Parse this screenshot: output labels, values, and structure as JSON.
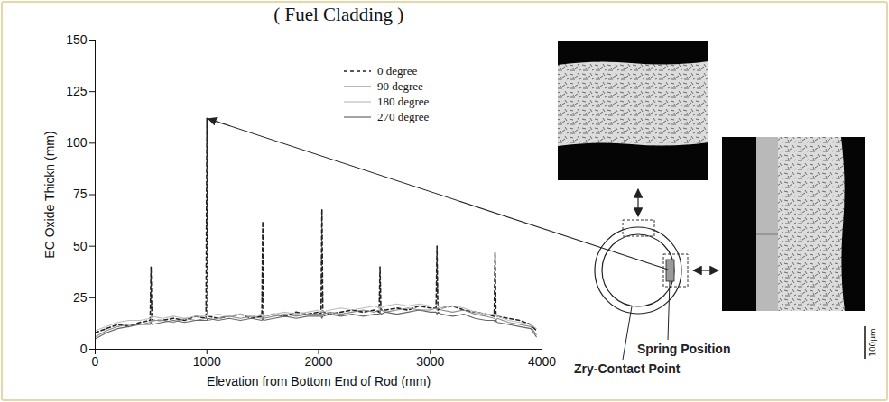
{
  "chart_data": {
    "type": "line",
    "title": "( Fuel Cladding )",
    "x_label": "Elevation from Bottom End of Rod (mm)",
    "y_label": "EC Oxide Thickn (mm)",
    "x": [
      0,
      100,
      200,
      300,
      400,
      492,
      500,
      508,
      600,
      700,
      800,
      900,
      992,
      1000,
      1008,
      1100,
      1200,
      1300,
      1400,
      1492,
      1500,
      1508,
      1600,
      1700,
      1800,
      1900,
      2000,
      2022,
      2030,
      2038,
      2100,
      2200,
      2300,
      2400,
      2500,
      2542,
      2550,
      2558,
      2600,
      2700,
      2800,
      2900,
      3000,
      3052,
      3060,
      3068,
      3100,
      3200,
      3300,
      3400,
      3500,
      3572,
      3580,
      3588,
      3600,
      3700,
      3800,
      3900,
      3950
    ],
    "series": [
      {
        "name": "0 degree",
        "color": "#222222",
        "line_style": "dashed",
        "values": [
          8,
          10,
          12,
          11,
          13,
          14,
          40,
          14,
          14,
          15,
          14,
          16,
          15,
          112,
          16,
          15,
          16,
          17,
          15,
          16,
          62,
          16,
          17,
          16,
          18,
          17,
          18,
          17,
          68,
          18,
          17,
          18,
          19,
          18,
          19,
          18,
          40,
          19,
          19,
          20,
          19,
          21,
          20,
          20,
          50,
          19,
          20,
          21,
          19,
          18,
          17,
          16,
          47,
          16,
          16,
          15,
          14,
          12,
          9
        ]
      },
      {
        "name": "90 degree",
        "color": "#8a8a8a",
        "line_style": "solid",
        "values": [
          6,
          9,
          11,
          12,
          12,
          13,
          13,
          14,
          14,
          13,
          15,
          14,
          15,
          15,
          14,
          15,
          16,
          15,
          16,
          15,
          16,
          15,
          16,
          17,
          16,
          17,
          17,
          17,
          16,
          17,
          18,
          17,
          18,
          19,
          18,
          19,
          18,
          19,
          18,
          19,
          20,
          19,
          19,
          20,
          19,
          20,
          19,
          18,
          19,
          17,
          16,
          15,
          15,
          14,
          15,
          13,
          12,
          11,
          7
        ]
      },
      {
        "name": "180 degree",
        "color": "#bdbdbd",
        "line_style": "solid",
        "values": [
          9,
          11,
          13,
          14,
          14,
          15,
          15,
          16,
          15,
          16,
          15,
          16,
          16,
          17,
          16,
          17,
          16,
          17,
          16,
          17,
          17,
          16,
          17,
          18,
          17,
          18,
          19,
          18,
          19,
          18,
          19,
          20,
          19,
          20,
          21,
          20,
          21,
          20,
          21,
          22,
          21,
          22,
          21,
          21,
          22,
          21,
          20,
          21,
          20,
          18,
          17,
          17,
          16,
          17,
          16,
          14,
          13,
          12,
          10
        ]
      },
      {
        "name": "270 degree",
        "color": "#666666",
        "line_style": "solid",
        "values": [
          5,
          8,
          10,
          11,
          12,
          12,
          13,
          12,
          13,
          14,
          13,
          14,
          14,
          14,
          15,
          14,
          15,
          14,
          15,
          14,
          15,
          14,
          15,
          16,
          15,
          16,
          16,
          16,
          15,
          16,
          17,
          16,
          17,
          16,
          17,
          17,
          18,
          17,
          18,
          17,
          18,
          19,
          18,
          18,
          17,
          18,
          17,
          16,
          17,
          15,
          14,
          14,
          13,
          14,
          13,
          12,
          11,
          10,
          6
        ]
      }
    ],
    "xlim": [
      0,
      4000
    ],
    "xticks": [
      0,
      1000,
      2000,
      3000,
      4000
    ],
    "ylim": [
      0,
      150
    ],
    "yticks": [
      0,
      25,
      50,
      75,
      100,
      125,
      150
    ],
    "grid": false,
    "legend": "top-right"
  },
  "diagram": {
    "labels": [
      "Spring Position",
      "Zry-Contact Point"
    ],
    "scale_bar": "100μm"
  }
}
